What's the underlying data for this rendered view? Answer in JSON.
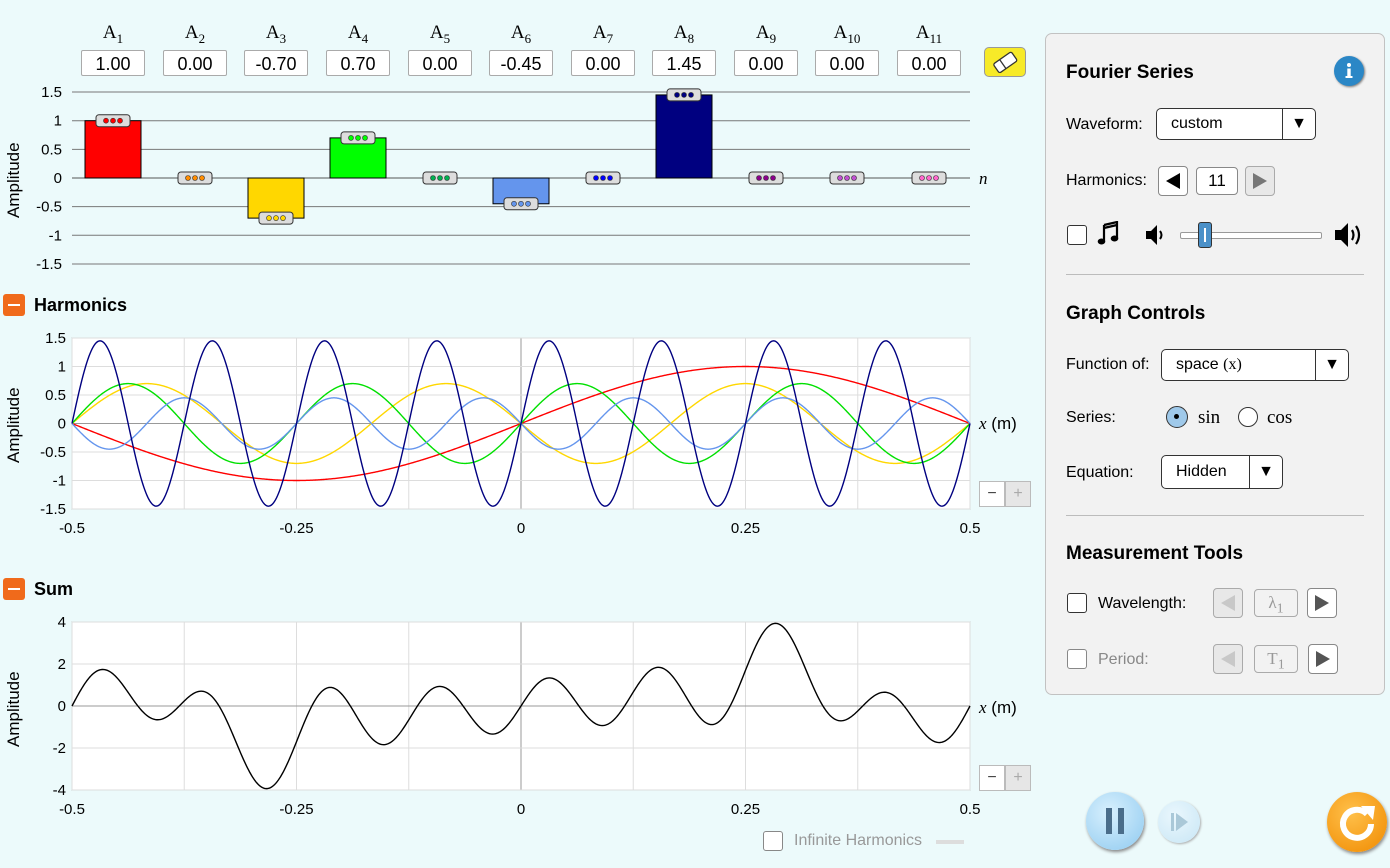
{
  "amplitudes": {
    "labels": [
      {
        "base": "A",
        "sub": "1"
      },
      {
        "base": "A",
        "sub": "2"
      },
      {
        "base": "A",
        "sub": "3"
      },
      {
        "base": "A",
        "sub": "4"
      },
      {
        "base": "A",
        "sub": "5"
      },
      {
        "base": "A",
        "sub": "6"
      },
      {
        "base": "A",
        "sub": "7"
      },
      {
        "base": "A",
        "sub": "8"
      },
      {
        "base": "A",
        "sub": "9"
      },
      {
        "base": "A",
        "sub": "10"
      },
      {
        "base": "A",
        "sub": "11"
      }
    ],
    "values_text": [
      "1.00",
      "0.00",
      "-0.70",
      "0.70",
      "0.00",
      "-0.45",
      "0.00",
      "1.45",
      "0.00",
      "0.00",
      "0.00"
    ],
    "values": [
      1.0,
      0.0,
      -0.7,
      0.7,
      0.0,
      -0.45,
      0.0,
      1.45,
      0.0,
      0.0,
      0.0
    ],
    "colors": [
      "#ff0000",
      "#ff8c00",
      "#ffd700",
      "#00ff00",
      "#00b050",
      "#6495ed",
      "#0000ff",
      "#000080",
      "#8b008b",
      "#c050d0",
      "#ff66cc"
    ],
    "y_ticks": [
      "1.5",
      "1",
      "0.5",
      "0",
      "-0.5",
      "-1",
      "-1.5"
    ],
    "y_label": "Amplitude",
    "x_label": "n"
  },
  "harmonics_section": {
    "title": "Harmonics",
    "y_label": "Amplitude",
    "y_ticks": [
      "1.5",
      "1",
      "0.5",
      "0",
      "-0.5",
      "-1",
      "-1.5"
    ],
    "x_ticks": [
      "-0.5",
      "-0.25",
      "0",
      "0.25",
      "0.5"
    ],
    "x_label_var": "x",
    "x_label_unit": "(m)"
  },
  "sum_section": {
    "title": "Sum",
    "y_label": "Amplitude",
    "y_ticks": [
      "4",
      "2",
      "0",
      "-2",
      "-4"
    ],
    "x_ticks": [
      "-0.5",
      "-0.25",
      "0",
      "0.25",
      "0.5"
    ],
    "x_label_var": "x",
    "x_label_unit": "(m)"
  },
  "zoom": {
    "minus": "−",
    "plus": "+"
  },
  "infinite_harmonics_label": "Infinite Harmonics",
  "panel": {
    "title": "Fourier Series",
    "waveform_label": "Waveform:",
    "waveform_value": "custom",
    "harmonics_label": "Harmonics:",
    "harmonics_value": "11",
    "graph_controls_title": "Graph Controls",
    "function_of_label": "Function of:",
    "function_of_value": "space",
    "function_of_var": "(x)",
    "series_label": "Series:",
    "series_sin": "sin",
    "series_cos": "cos",
    "series_selected": "sin",
    "equation_label": "Equation:",
    "equation_value": "Hidden",
    "measurement_title": "Measurement Tools",
    "wavelength_label": "Wavelength:",
    "wavelength_symbol": "λ",
    "wavelength_sub": "1",
    "period_label": "Period:",
    "period_symbol": "T",
    "period_sub": "1",
    "volume_level": 0.18
  },
  "colors": {
    "background": "#ecfafb",
    "accent_orange": "#f06a1b",
    "info_blue": "#2b87c6",
    "play_blue": "#9fd4f3"
  },
  "chart_data": [
    {
      "type": "bar",
      "title": "",
      "categories": [
        "A1",
        "A2",
        "A3",
        "A4",
        "A5",
        "A6",
        "A7",
        "A8",
        "A9",
        "A10",
        "A11"
      ],
      "values": [
        1.0,
        0.0,
        -0.7,
        0.7,
        0.0,
        -0.45,
        0.0,
        1.45,
        0.0,
        0.0,
        0.0
      ],
      "xlabel": "n",
      "ylabel": "Amplitude",
      "ylim": [
        -1.5,
        1.5
      ]
    },
    {
      "type": "line",
      "title": "Harmonics",
      "xlabel": "x (m)",
      "ylabel": "Amplitude",
      "xlim": [
        -0.5,
        0.5
      ],
      "ylim": [
        -1.5,
        1.5
      ],
      "series": [
        {
          "harmonic": 1,
          "amplitude": 1.0,
          "color": "#ff0000"
        },
        {
          "harmonic": 3,
          "amplitude": -0.7,
          "color": "#ffd700"
        },
        {
          "harmonic": 4,
          "amplitude": 0.7,
          "color": "#00e000"
        },
        {
          "harmonic": 6,
          "amplitude": -0.45,
          "color": "#6495ed"
        },
        {
          "harmonic": 8,
          "amplitude": 1.45,
          "color": "#000080"
        }
      ]
    },
    {
      "type": "line",
      "title": "Sum",
      "xlabel": "x (m)",
      "ylabel": "Amplitude",
      "xlim": [
        -0.5,
        0.5
      ],
      "ylim": [
        -4,
        4
      ],
      "series": [
        {
          "components": "sum of harmonics",
          "color": "#000000"
        }
      ]
    }
  ]
}
